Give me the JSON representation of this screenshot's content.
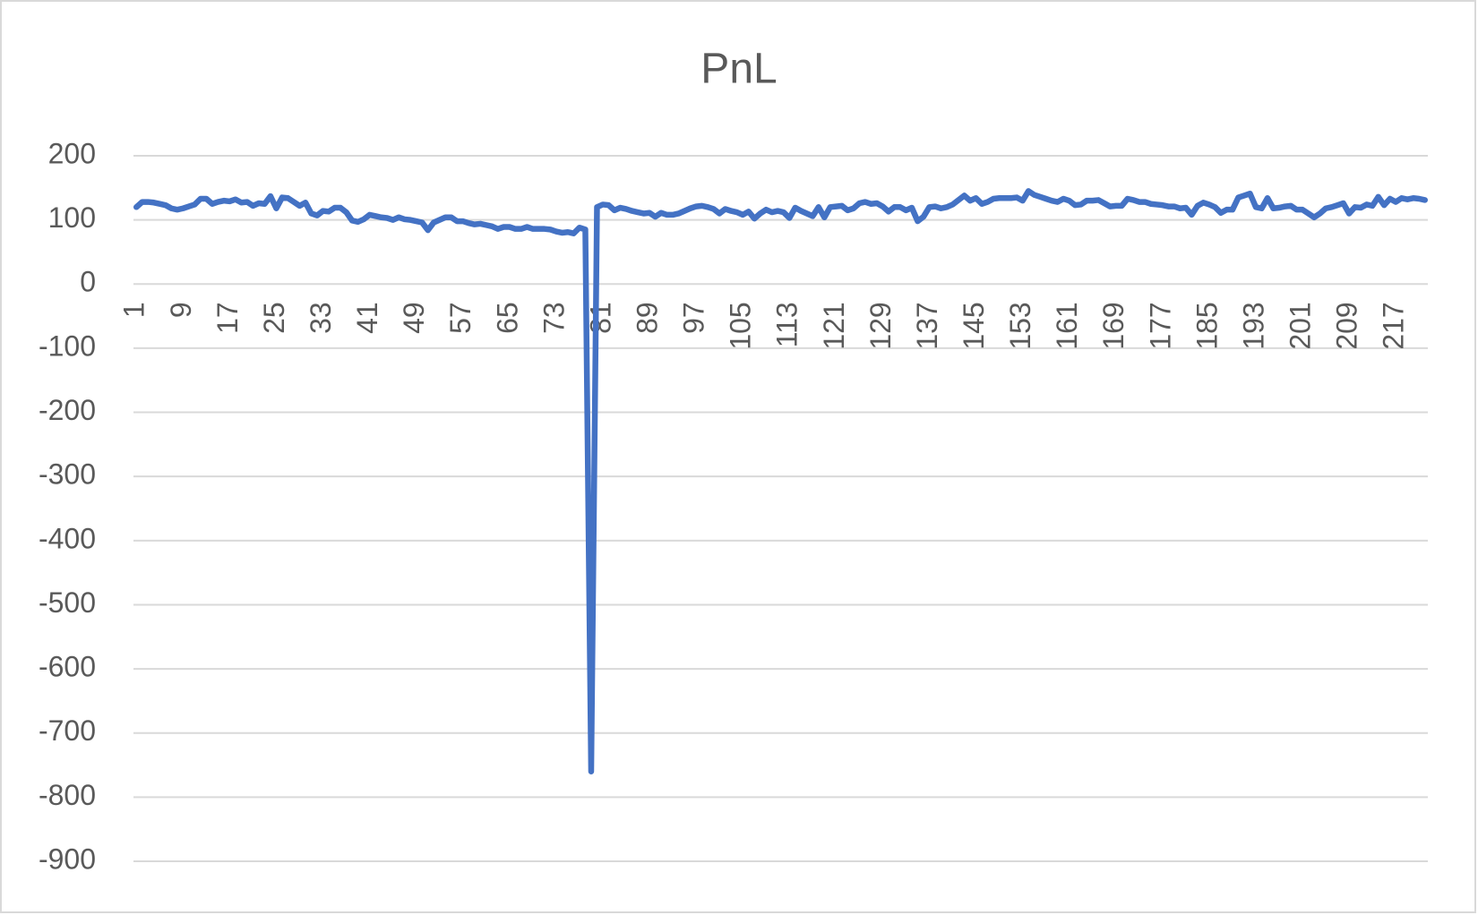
{
  "chart_data": {
    "type": "line",
    "title": "PnL",
    "categories": [
      "1",
      null,
      null,
      null,
      null,
      null,
      null,
      null,
      "9",
      null,
      null,
      null,
      null,
      null,
      null,
      null,
      "17",
      null,
      null,
      null,
      null,
      null,
      null,
      null,
      "25",
      null,
      null,
      null,
      null,
      null,
      null,
      null,
      "33",
      null,
      null,
      null,
      null,
      null,
      null,
      null,
      "41",
      null,
      null,
      null,
      null,
      null,
      null,
      null,
      "49",
      null,
      null,
      null,
      null,
      null,
      null,
      null,
      "57",
      null,
      null,
      null,
      null,
      null,
      null,
      null,
      "65",
      null,
      null,
      null,
      null,
      null,
      null,
      null,
      "73",
      null,
      null,
      null,
      null,
      null,
      null,
      null,
      "81",
      null,
      null,
      null,
      null,
      null,
      null,
      null,
      "89",
      null,
      null,
      null,
      null,
      null,
      null,
      null,
      "97",
      null,
      null,
      null,
      null,
      null,
      null,
      null,
      "105",
      null,
      null,
      null,
      null,
      null,
      null,
      null,
      "113",
      null,
      null,
      null,
      null,
      null,
      null,
      null,
      "121",
      null,
      null,
      null,
      null,
      null,
      null,
      null,
      "129",
      null,
      null,
      null,
      null,
      null,
      null,
      null,
      "137",
      null,
      null,
      null,
      null,
      null,
      null,
      null,
      "145",
      null,
      null,
      null,
      null,
      null,
      null,
      null,
      "153",
      null,
      null,
      null,
      null,
      null,
      null,
      null,
      "161",
      null,
      null,
      null,
      null,
      null,
      null,
      null,
      "169",
      null,
      null,
      null,
      null,
      null,
      null,
      null,
      "177",
      null,
      null,
      null,
      null,
      null,
      null,
      null,
      "185",
      null,
      null,
      null,
      null,
      null,
      null,
      null,
      "193",
      null,
      null,
      null,
      null,
      null,
      null,
      null,
      "201",
      null,
      null,
      null,
      null,
      null,
      null,
      null,
      "209",
      null,
      null,
      null,
      null,
      null,
      null,
      null,
      "217",
      null,
      null,
      null,
      null,
      null
    ],
    "values": [
      120,
      128,
      128,
      127,
      125,
      123,
      118,
      116,
      118,
      121,
      124,
      133,
      133,
      125,
      128,
      130,
      129,
      132,
      127,
      128,
      122,
      126,
      125,
      137,
      118,
      135,
      134,
      128,
      122,
      127,
      110,
      107,
      114,
      113,
      119,
      119,
      112,
      99,
      97,
      101,
      108,
      106,
      104,
      103,
      100,
      104,
      101,
      100,
      98,
      96,
      84,
      96,
      100,
      104,
      104,
      98,
      98,
      95,
      93,
      94,
      92,
      90,
      86,
      89,
      89,
      86,
      86,
      89,
      86,
      86,
      86,
      85,
      82,
      80,
      81,
      79,
      88,
      85,
      -760,
      120,
      124,
      123,
      115,
      119,
      117,
      114,
      112,
      110,
      111,
      105,
      111,
      108,
      108,
      110,
      114,
      118,
      121,
      122,
      120,
      117,
      110,
      117,
      114,
      112,
      108,
      113,
      102,
      110,
      116,
      112,
      114,
      112,
      103,
      119,
      114,
      110,
      106,
      120,
      104,
      120,
      121,
      122,
      115,
      118,
      126,
      128,
      125,
      126,
      121,
      113,
      120,
      120,
      115,
      119,
      98,
      105,
      120,
      121,
      118,
      120,
      124,
      131,
      138,
      130,
      134,
      125,
      128,
      133,
      134,
      134,
      134,
      135,
      130,
      145,
      139,
      136,
      133,
      130,
      128,
      133,
      130,
      123,
      124,
      130,
      130,
      131,
      126,
      121,
      122,
      122,
      133,
      131,
      128,
      128,
      125,
      124,
      123,
      121,
      121,
      118,
      119,
      108,
      122,
      127,
      124,
      120,
      111,
      116,
      116,
      135,
      138,
      141,
      120,
      118,
      134,
      118,
      119,
      121,
      122,
      116,
      116,
      110,
      104,
      110,
      118,
      120,
      123,
      126,
      110,
      120,
      119,
      124,
      122,
      136,
      123,
      133,
      128,
      134,
      132,
      134,
      133,
      131
    ],
    "color": "#4472c4",
    "ylim": [
      -900,
      200
    ],
    "yticks": [
      -900,
      -800,
      -700,
      -600,
      -500,
      -400,
      -300,
      -200,
      -100,
      0,
      100,
      200
    ],
    "grid": true
  }
}
